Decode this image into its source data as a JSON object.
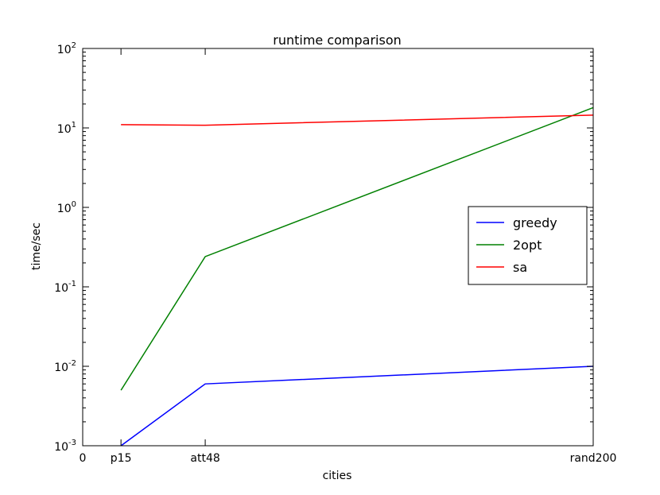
{
  "chart_data": {
    "type": "line",
    "title": "runtime comparison",
    "xlabel": "cities",
    "ylabel": "time/sec",
    "x_scale": "linear",
    "y_scale": "log",
    "xlim": [
      0,
      200
    ],
    "ylim": [
      0.001,
      100
    ],
    "grid": false,
    "legend_position": "center-right",
    "x_ticks": [
      {
        "value": 0,
        "label": "0"
      },
      {
        "value": 15,
        "label": "p15"
      },
      {
        "value": 48,
        "label": "att48"
      },
      {
        "value": 200,
        "label": "rand200"
      }
    ],
    "y_ticks": [
      {
        "value": 0.001,
        "base": "10",
        "exp": "-3"
      },
      {
        "value": 0.01,
        "base": "10",
        "exp": "-2"
      },
      {
        "value": 0.1,
        "base": "10",
        "exp": "-1"
      },
      {
        "value": 1,
        "base": "10",
        "exp": "0"
      },
      {
        "value": 10,
        "base": "10",
        "exp": "1"
      },
      {
        "value": 100,
        "base": "10",
        "exp": "2"
      }
    ],
    "x": [
      15,
      48,
      200
    ],
    "series": [
      {
        "name": "greedy",
        "color": "#0000ff",
        "values": [
          0.001,
          0.006,
          0.01
        ]
      },
      {
        "name": "2opt",
        "color": "#008000",
        "values": [
          0.005,
          0.24,
          18
        ]
      },
      {
        "name": "sa",
        "color": "#ff0000",
        "values": [
          11,
          10.8,
          14.5
        ]
      }
    ]
  }
}
